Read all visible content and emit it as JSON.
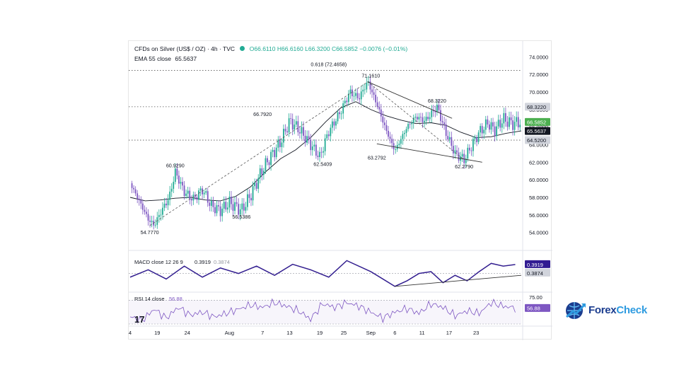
{
  "header": {
    "symbol": "CFDs on Silver (US$ / OZ) · 4h · TVC",
    "open": "O66.6110",
    "high": "H66.6160",
    "low": "L66.3200",
    "close": "C66.5852",
    "change": "−0.0076 (−0.01%)",
    "ema_label": "EMA 55 close",
    "ema_value": "65.5637"
  },
  "logo": {
    "prefix": "Forex",
    "suffix": "Check"
  },
  "colors": {
    "up": "#22ab94",
    "down": "#7e57c2",
    "price": "#131722",
    "ema": "#131722",
    "accent_label": "#4caf50"
  },
  "chart_data": [
    {
      "type": "candlestick",
      "title": "CFDs on Silver (US$ / OZ) · 4h · TVC",
      "ylim": [
        53,
        75
      ],
      "y_ticks": [
        "54.0000",
        "56.0000",
        "58.0000",
        "60.0000",
        "62.0000",
        "64.0000",
        "66.0000",
        "68.0000",
        "70.0000",
        "72.0000",
        "74.0000"
      ],
      "x_ticks": [
        "4",
        "19",
        "24",
        "Aug",
        "7",
        "13",
        "19",
        "25",
        "Sep",
        "6",
        "11",
        "17",
        "23"
      ],
      "price_path_x": [
        0,
        3,
        6,
        8,
        10,
        13,
        15,
        18,
        21,
        24,
        27,
        30,
        33,
        37,
        40,
        44,
        47,
        50,
        53,
        56,
        60,
        63,
        66,
        70,
        73,
        76,
        79,
        82,
        85,
        88,
        92,
        95,
        98,
        102
      ],
      "price_path_y": [
        59.6,
        57.6,
        55.5,
        54.8,
        56.2,
        58.0,
        60.9,
        58.6,
        57.8,
        58.9,
        57.0,
        56.5,
        57.4,
        56.5,
        58.2,
        61.2,
        62.8,
        64.3,
        66.7,
        65.8,
        64.0,
        62.6,
        65.5,
        67.8,
        70.0,
        69.3,
        71.2,
        68.6,
        65.7,
        63.3,
        66.0,
        67.2,
        66.7,
        68.3
      ],
      "price_path_x2": [
        102,
        105,
        108,
        111,
        114,
        116,
        119,
        121,
        124,
        127,
        130
      ],
      "price_path_y2": [
        68.3,
        65.3,
        63.0,
        62.3,
        64.2,
        65.4,
        66.5,
        65.6,
        66.9,
        66.4,
        66.6
      ],
      "ema_x": [
        0,
        5,
        10,
        15,
        20,
        25,
        30,
        35,
        40,
        45,
        50,
        55,
        60,
        65,
        70,
        75,
        80,
        85,
        90,
        95,
        100,
        105,
        110,
        115,
        120,
        125,
        130
      ],
      "ema_y": [
        58.0,
        57.6,
        57.7,
        57.9,
        58.0,
        57.7,
        57.6,
        58.1,
        59.2,
        60.9,
        62.4,
        63.4,
        64.8,
        66.6,
        68.2,
        68.9,
        68.0,
        67.3,
        66.8,
        66.4,
        66.5,
        66.2,
        65.4,
        64.8,
        64.9,
        65.3,
        65.56
      ],
      "x_tick_positions": [
        0,
        9,
        19,
        33,
        44,
        53,
        63,
        71,
        80,
        88,
        97,
        106,
        115
      ],
      "annotations": [
        {
          "text": "54.7770",
          "x": 6.5,
          "y": 54.77
        },
        {
          "text": "60.9290",
          "x": 15,
          "y": 60.93
        },
        {
          "text": "56.5386",
          "x": 37,
          "y": 56.54
        },
        {
          "text": "66.7920",
          "x": 44,
          "y": 66.79
        },
        {
          "text": "62.5409",
          "x": 64,
          "y": 62.54
        },
        {
          "text": "71.1610",
          "x": 80,
          "y": 71.16
        },
        {
          "text": "0.618 (72.4658)",
          "x": 66,
          "y": 72.47
        },
        {
          "text": "63.2792",
          "x": 82,
          "y": 63.28
        },
        {
          "text": "68.3220",
          "x": 102,
          "y": 68.32
        },
        {
          "text": "62.2790",
          "x": 111,
          "y": 62.28
        }
      ],
      "horizontal_levels": [
        {
          "value": 72.4658,
          "label": "0.618 (72.4658)"
        },
        {
          "value": 68.322,
          "label": "68.3220"
        },
        {
          "value": 64.52,
          "label": "64.5200"
        }
      ],
      "price_labels": [
        {
          "text": "68.3220",
          "value": 68.322,
          "bg": "#d1d4dc",
          "fg": "#131722"
        },
        {
          "text": "66.5852",
          "value": 66.5852,
          "bg": "#4caf50",
          "fg": "#ffffff"
        },
        {
          "text": "65.5637",
          "value": 65.5637,
          "bg": "#131722",
          "fg": "#ffffff"
        },
        {
          "text": "64.5200",
          "value": 64.52,
          "bg": "#d1d4dc",
          "fg": "#131722"
        }
      ],
      "trendlines": [
        {
          "from": [
            79,
            71.16
          ],
          "to": [
            107,
            67.0
          ]
        },
        {
          "from": [
            82,
            64.1
          ],
          "to": [
            117,
            62.0
          ]
        }
      ]
    },
    {
      "type": "line",
      "title": "MACD close 12 26 9",
      "values_label": [
        "0.3919",
        "0.3874"
      ],
      "macd_x": [
        0,
        6,
        12,
        18,
        24,
        30,
        36,
        42,
        48,
        54,
        60,
        66,
        72,
        76,
        80,
        84,
        88,
        92,
        96,
        100,
        104,
        108,
        112,
        116,
        120,
        124,
        128
      ],
      "macd_y": [
        -0.3,
        0.1,
        -0.4,
        0.3,
        -0.3,
        0.2,
        -0.1,
        0.3,
        -0.2,
        0.4,
        0.1,
        -0.3,
        0.6,
        0.3,
        0.0,
        -0.4,
        -0.8,
        -0.5,
        -0.1,
        0.0,
        -0.6,
        -0.2,
        -0.5,
        0.0,
        0.45,
        0.3,
        0.39
      ],
      "trendline": {
        "from": [
          88,
          -0.8
        ],
        "to": [
          130,
          -0.2
        ]
      }
    },
    {
      "type": "line",
      "title": "RSI 14 close",
      "value_label": "56.88",
      "y_tick": "75.00",
      "rsi_x": [
        0,
        4,
        8,
        12,
        16,
        20,
        24,
        28,
        32,
        36,
        40,
        44,
        48,
        52,
        56,
        60,
        64,
        68,
        72,
        76,
        80,
        84,
        88,
        92,
        96,
        100,
        104,
        108,
        112,
        116,
        120,
        124,
        128
      ],
      "rsi_y": [
        42,
        36,
        55,
        40,
        58,
        45,
        50,
        42,
        48,
        55,
        62,
        58,
        66,
        60,
        52,
        38,
        64,
        58,
        66,
        60,
        50,
        40,
        50,
        56,
        48,
        64,
        58,
        44,
        52,
        48,
        66,
        60,
        56.88
      ]
    }
  ]
}
